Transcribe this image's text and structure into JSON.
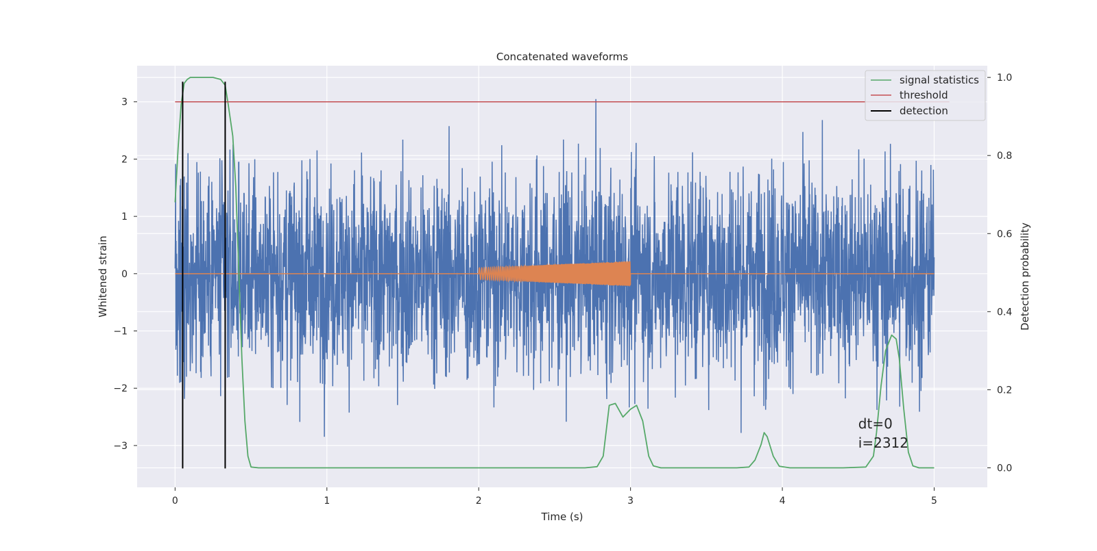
{
  "chart_data": {
    "type": "line",
    "title": "Concatenated waveforms",
    "xlabel": "Time (s)",
    "ylabel": "Whitened strain",
    "ylabel_right": "Detection probability",
    "xlim": [
      -0.25,
      5.35
    ],
    "ylim": [
      -3.73,
      3.63
    ],
    "ylim_right": [
      -0.05,
      1.03
    ],
    "x_ticks": [
      0,
      1,
      2,
      3,
      4,
      5
    ],
    "y_ticks": [
      -3,
      -2,
      -1,
      0,
      1,
      2,
      3
    ],
    "y_ticks_right": [
      0.0,
      0.2,
      0.4,
      0.6,
      0.8,
      1.0
    ],
    "grid": true,
    "legend_position": "top-right",
    "annotation": {
      "lines": [
        "dt=0",
        "i=2312"
      ],
      "x": 4.5,
      "y": -2.7
    },
    "colors": {
      "noise": "#4c72b0",
      "injection": "#dd8452",
      "signal_statistics": "#55a868",
      "threshold": "#c44e52",
      "detection": "#000000",
      "axes_bg": "#eaeaf2",
      "grid": "#ffffff"
    },
    "series": [
      {
        "name": "signal statistics",
        "axis": "right",
        "color": "#55a868",
        "x": [
          0.0,
          0.02,
          0.04,
          0.06,
          0.08,
          0.1,
          0.15,
          0.2,
          0.25,
          0.3,
          0.33,
          0.35,
          0.38,
          0.4,
          0.42,
          0.44,
          0.46,
          0.48,
          0.5,
          0.55,
          1.0,
          2.0,
          2.7,
          2.78,
          2.82,
          2.86,
          2.9,
          2.95,
          3.0,
          3.04,
          3.08,
          3.12,
          3.15,
          3.2,
          3.5,
          3.7,
          3.78,
          3.82,
          3.86,
          3.88,
          3.9,
          3.94,
          3.98,
          4.05,
          4.4,
          4.55,
          4.6,
          4.62,
          4.65,
          4.68,
          4.72,
          4.75,
          4.77,
          4.8,
          4.83,
          4.86,
          4.9,
          5.0
        ],
        "y": [
          0.68,
          0.82,
          0.93,
          0.985,
          0.995,
          1.0,
          1.0,
          1.0,
          1.0,
          0.995,
          0.98,
          0.93,
          0.85,
          0.72,
          0.5,
          0.28,
          0.12,
          0.03,
          0.002,
          0.0,
          0.0,
          0.0,
          0.0,
          0.003,
          0.03,
          0.16,
          0.165,
          0.13,
          0.15,
          0.16,
          0.12,
          0.03,
          0.005,
          0.0,
          0.0,
          0.0,
          0.002,
          0.02,
          0.06,
          0.09,
          0.08,
          0.03,
          0.004,
          0.0,
          0.0,
          0.002,
          0.03,
          0.09,
          0.21,
          0.3,
          0.34,
          0.33,
          0.28,
          0.15,
          0.04,
          0.005,
          0.0,
          0.0
        ]
      },
      {
        "name": "threshold",
        "axis": "left",
        "color": "#c44e52",
        "x": [
          0.0,
          5.1
        ],
        "y": [
          3.0,
          3.0
        ]
      },
      {
        "name": "detection",
        "axis": "left",
        "color": "#000000",
        "type": "vlines",
        "x": [
          0.05,
          0.33
        ],
        "ymin": -3.4,
        "ymax": 3.35
      }
    ],
    "noise_envelope": {
      "axis": "left",
      "color": "#4c72b0",
      "x_range": [
        0.0,
        5.0
      ],
      "typical_amplitude": 1.0,
      "peak_amplitude": 3.3
    },
    "injection_chirp": {
      "axis": "left",
      "color": "#dd8452",
      "x_range": [
        2.0,
        3.0
      ],
      "amplitude_start": 0.1,
      "amplitude_end": 0.22
    }
  }
}
